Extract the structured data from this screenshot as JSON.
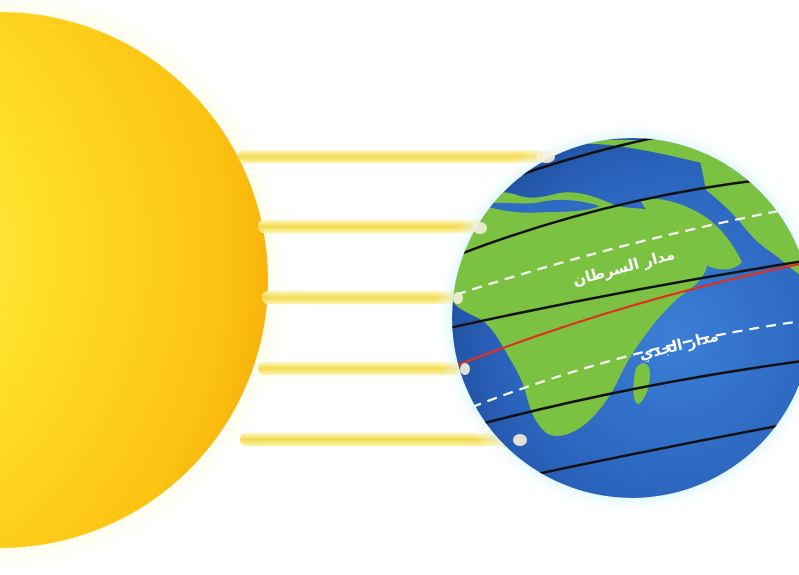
{
  "diagram": {
    "labels": {
      "tropic_of_cancer": "مدار السرطان",
      "tropic_of_capricorn": "مدار الجدي"
    },
    "colors": {
      "sun": "#ffd21f",
      "sun_edge": "#f7b30a",
      "rays": "#f5e06a",
      "ocean": "#2e6cc4",
      "land": "#7cc242",
      "glow": "#9fe3ff",
      "equator": "#e0301e",
      "latitude_lines": "#111111",
      "tropic_lines": "#ffffff"
    }
  }
}
